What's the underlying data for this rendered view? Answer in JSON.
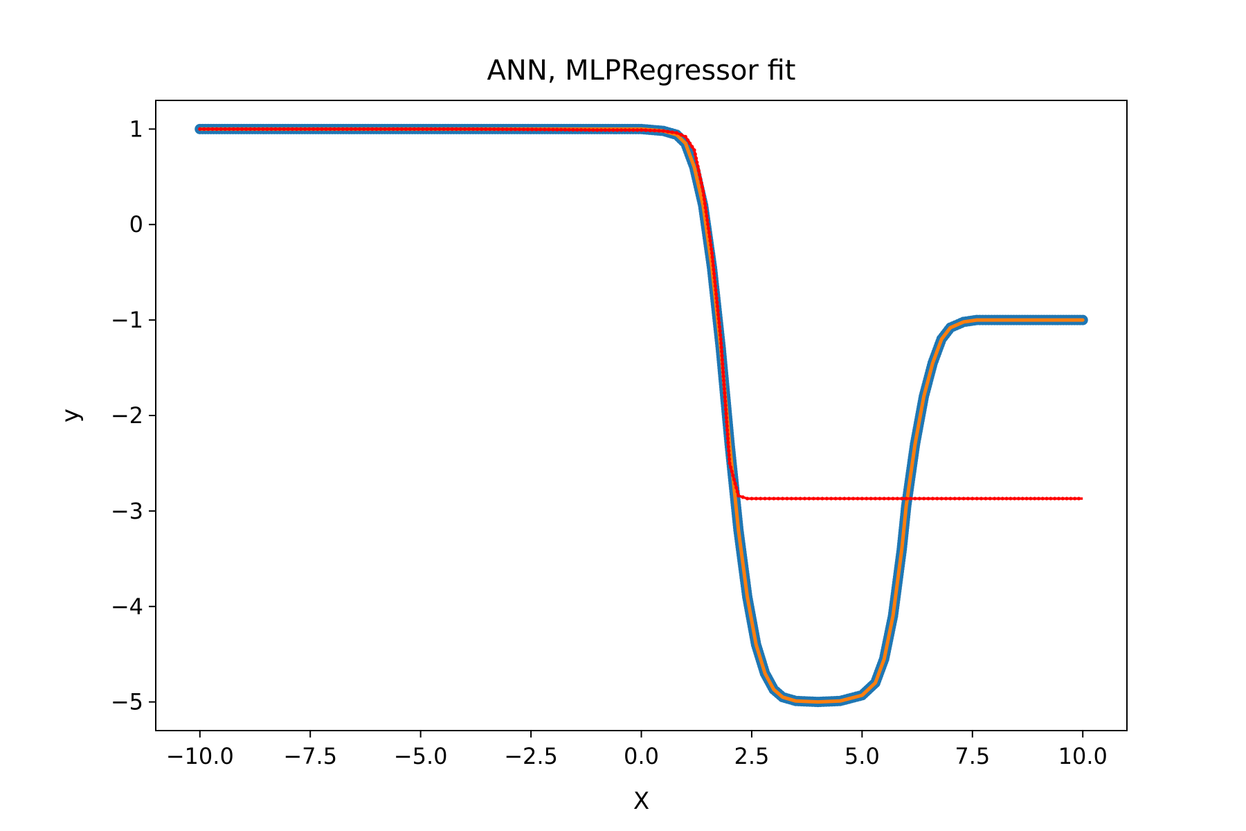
{
  "chart_data": {
    "type": "line",
    "title": "ANN, MLPRegressor fit",
    "xlabel": "X",
    "ylabel": "y",
    "xlim": [
      -11.0,
      11.0
    ],
    "ylim": [
      -5.3,
      1.3
    ],
    "grid": false,
    "legend": "none",
    "x_ticks": [
      -10.0,
      -7.5,
      -5.0,
      -2.5,
      0.0,
      2.5,
      5.0,
      7.5,
      10.0
    ],
    "x_tick_labels": [
      "−10.0",
      "−7.5",
      "−5.0",
      "−2.5",
      "0.0",
      "2.5",
      "5.0",
      "7.5",
      "10.0"
    ],
    "y_ticks": [
      1,
      0,
      -1,
      -2,
      -3,
      -4,
      -5
    ],
    "y_tick_labels": [
      "1",
      "0",
      "−1",
      "−2",
      "−3",
      "−4",
      "−5"
    ],
    "x": [
      -10.0,
      -8.0,
      -6.0,
      -4.0,
      -2.0,
      -1.0,
      0.0,
      0.5,
      0.8,
      1.0,
      1.2,
      1.4,
      1.6,
      1.8,
      2.0,
      2.2,
      2.4,
      2.6,
      2.8,
      3.0,
      3.2,
      3.5,
      4.0,
      4.5,
      5.0,
      5.3,
      5.5,
      5.7,
      5.9,
      6.0,
      6.2,
      6.4,
      6.6,
      6.8,
      7.0,
      7.3,
      7.6,
      8.0,
      9.0,
      10.0
    ],
    "series": [
      {
        "role": "data-scatter",
        "color": "#1f77b4",
        "values": [
          1.0,
          1.0,
          1.0,
          1.0,
          1.0,
          1.0,
          1.0,
          0.98,
          0.94,
          0.85,
          0.6,
          0.2,
          -0.45,
          -1.3,
          -2.3,
          -3.2,
          -3.9,
          -4.4,
          -4.7,
          -4.87,
          -4.95,
          -4.99,
          -5.0,
          -4.99,
          -4.93,
          -4.8,
          -4.55,
          -4.1,
          -3.4,
          -2.95,
          -2.3,
          -1.8,
          -1.45,
          -1.2,
          -1.08,
          -1.02,
          -1.0,
          -1.0,
          -1.0,
          -1.0
        ]
      },
      {
        "role": "true-function",
        "color": "#ff7f0e",
        "values": [
          1.0,
          1.0,
          1.0,
          1.0,
          1.0,
          1.0,
          1.0,
          0.98,
          0.94,
          0.85,
          0.6,
          0.2,
          -0.45,
          -1.3,
          -2.3,
          -3.2,
          -3.9,
          -4.4,
          -4.7,
          -4.87,
          -4.95,
          -4.99,
          -5.0,
          -4.99,
          -4.93,
          -4.8,
          -4.55,
          -4.1,
          -3.4,
          -2.95,
          -2.3,
          -1.8,
          -1.45,
          -1.2,
          -1.08,
          -1.02,
          -1.0,
          -1.0,
          -1.0,
          -1.0
        ]
      },
      {
        "role": "mlp-prediction",
        "color": "#ff0000",
        "values": [
          1.0,
          1.0,
          1.0,
          1.0,
          0.995,
          0.99,
          0.99,
          0.98,
          0.96,
          0.92,
          0.78,
          0.35,
          -0.3,
          -1.2,
          -2.5,
          -2.84,
          -2.87,
          -2.87,
          -2.87,
          -2.87,
          -2.87,
          -2.87,
          -2.87,
          -2.87,
          -2.87,
          -2.87,
          -2.87,
          -2.87,
          -2.87,
          -2.87,
          -2.87,
          -2.87,
          -2.87,
          -2.87,
          -2.87,
          -2.87,
          -2.87,
          -2.87,
          -2.87,
          -2.87
        ]
      }
    ]
  }
}
